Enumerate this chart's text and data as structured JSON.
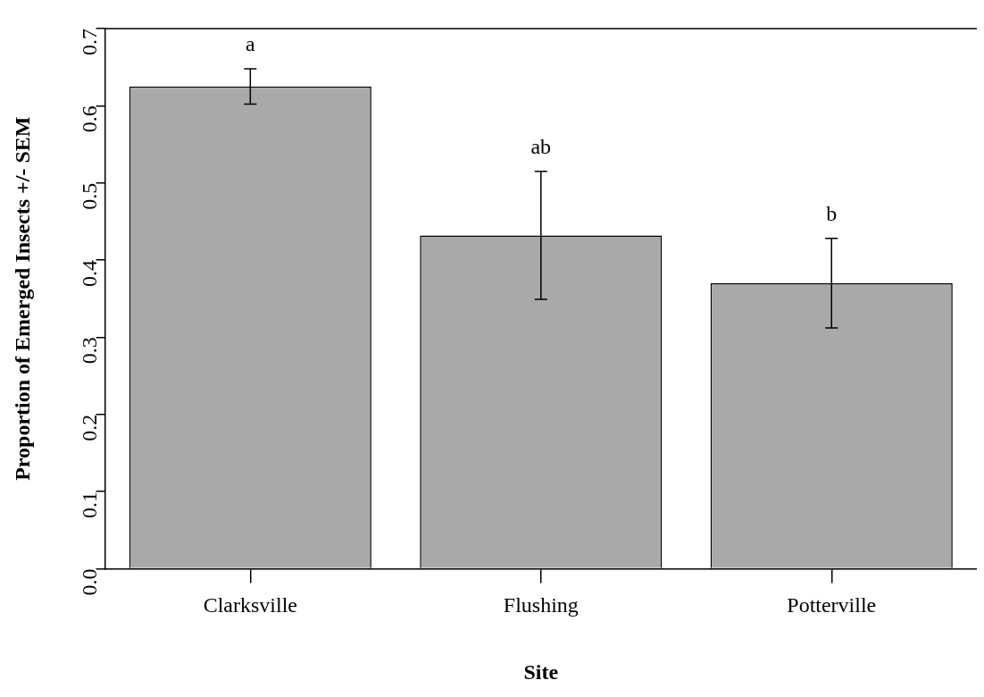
{
  "chart_data": {
    "type": "bar",
    "xlabel": "Site",
    "ylabel": "Proportion of Emerged Insects +/- SEM",
    "categories": [
      "Clarksville",
      "Flushing",
      "Potterville"
    ],
    "values": [
      0.625,
      0.432,
      0.37
    ],
    "errors": [
      0.023,
      0.083,
      0.058
    ],
    "color": "#a9a9a9",
    "ylim": [
      0,
      0.7
    ],
    "yticks": [
      {
        "value": 0,
        "label": "0.0"
      },
      0.1,
      0.2,
      0.3,
      0.4,
      0.5,
      0.6,
      0.7
    ],
    "grid": false,
    "legend": false,
    "annotations": [
      "a",
      "ab",
      "b"
    ]
  }
}
